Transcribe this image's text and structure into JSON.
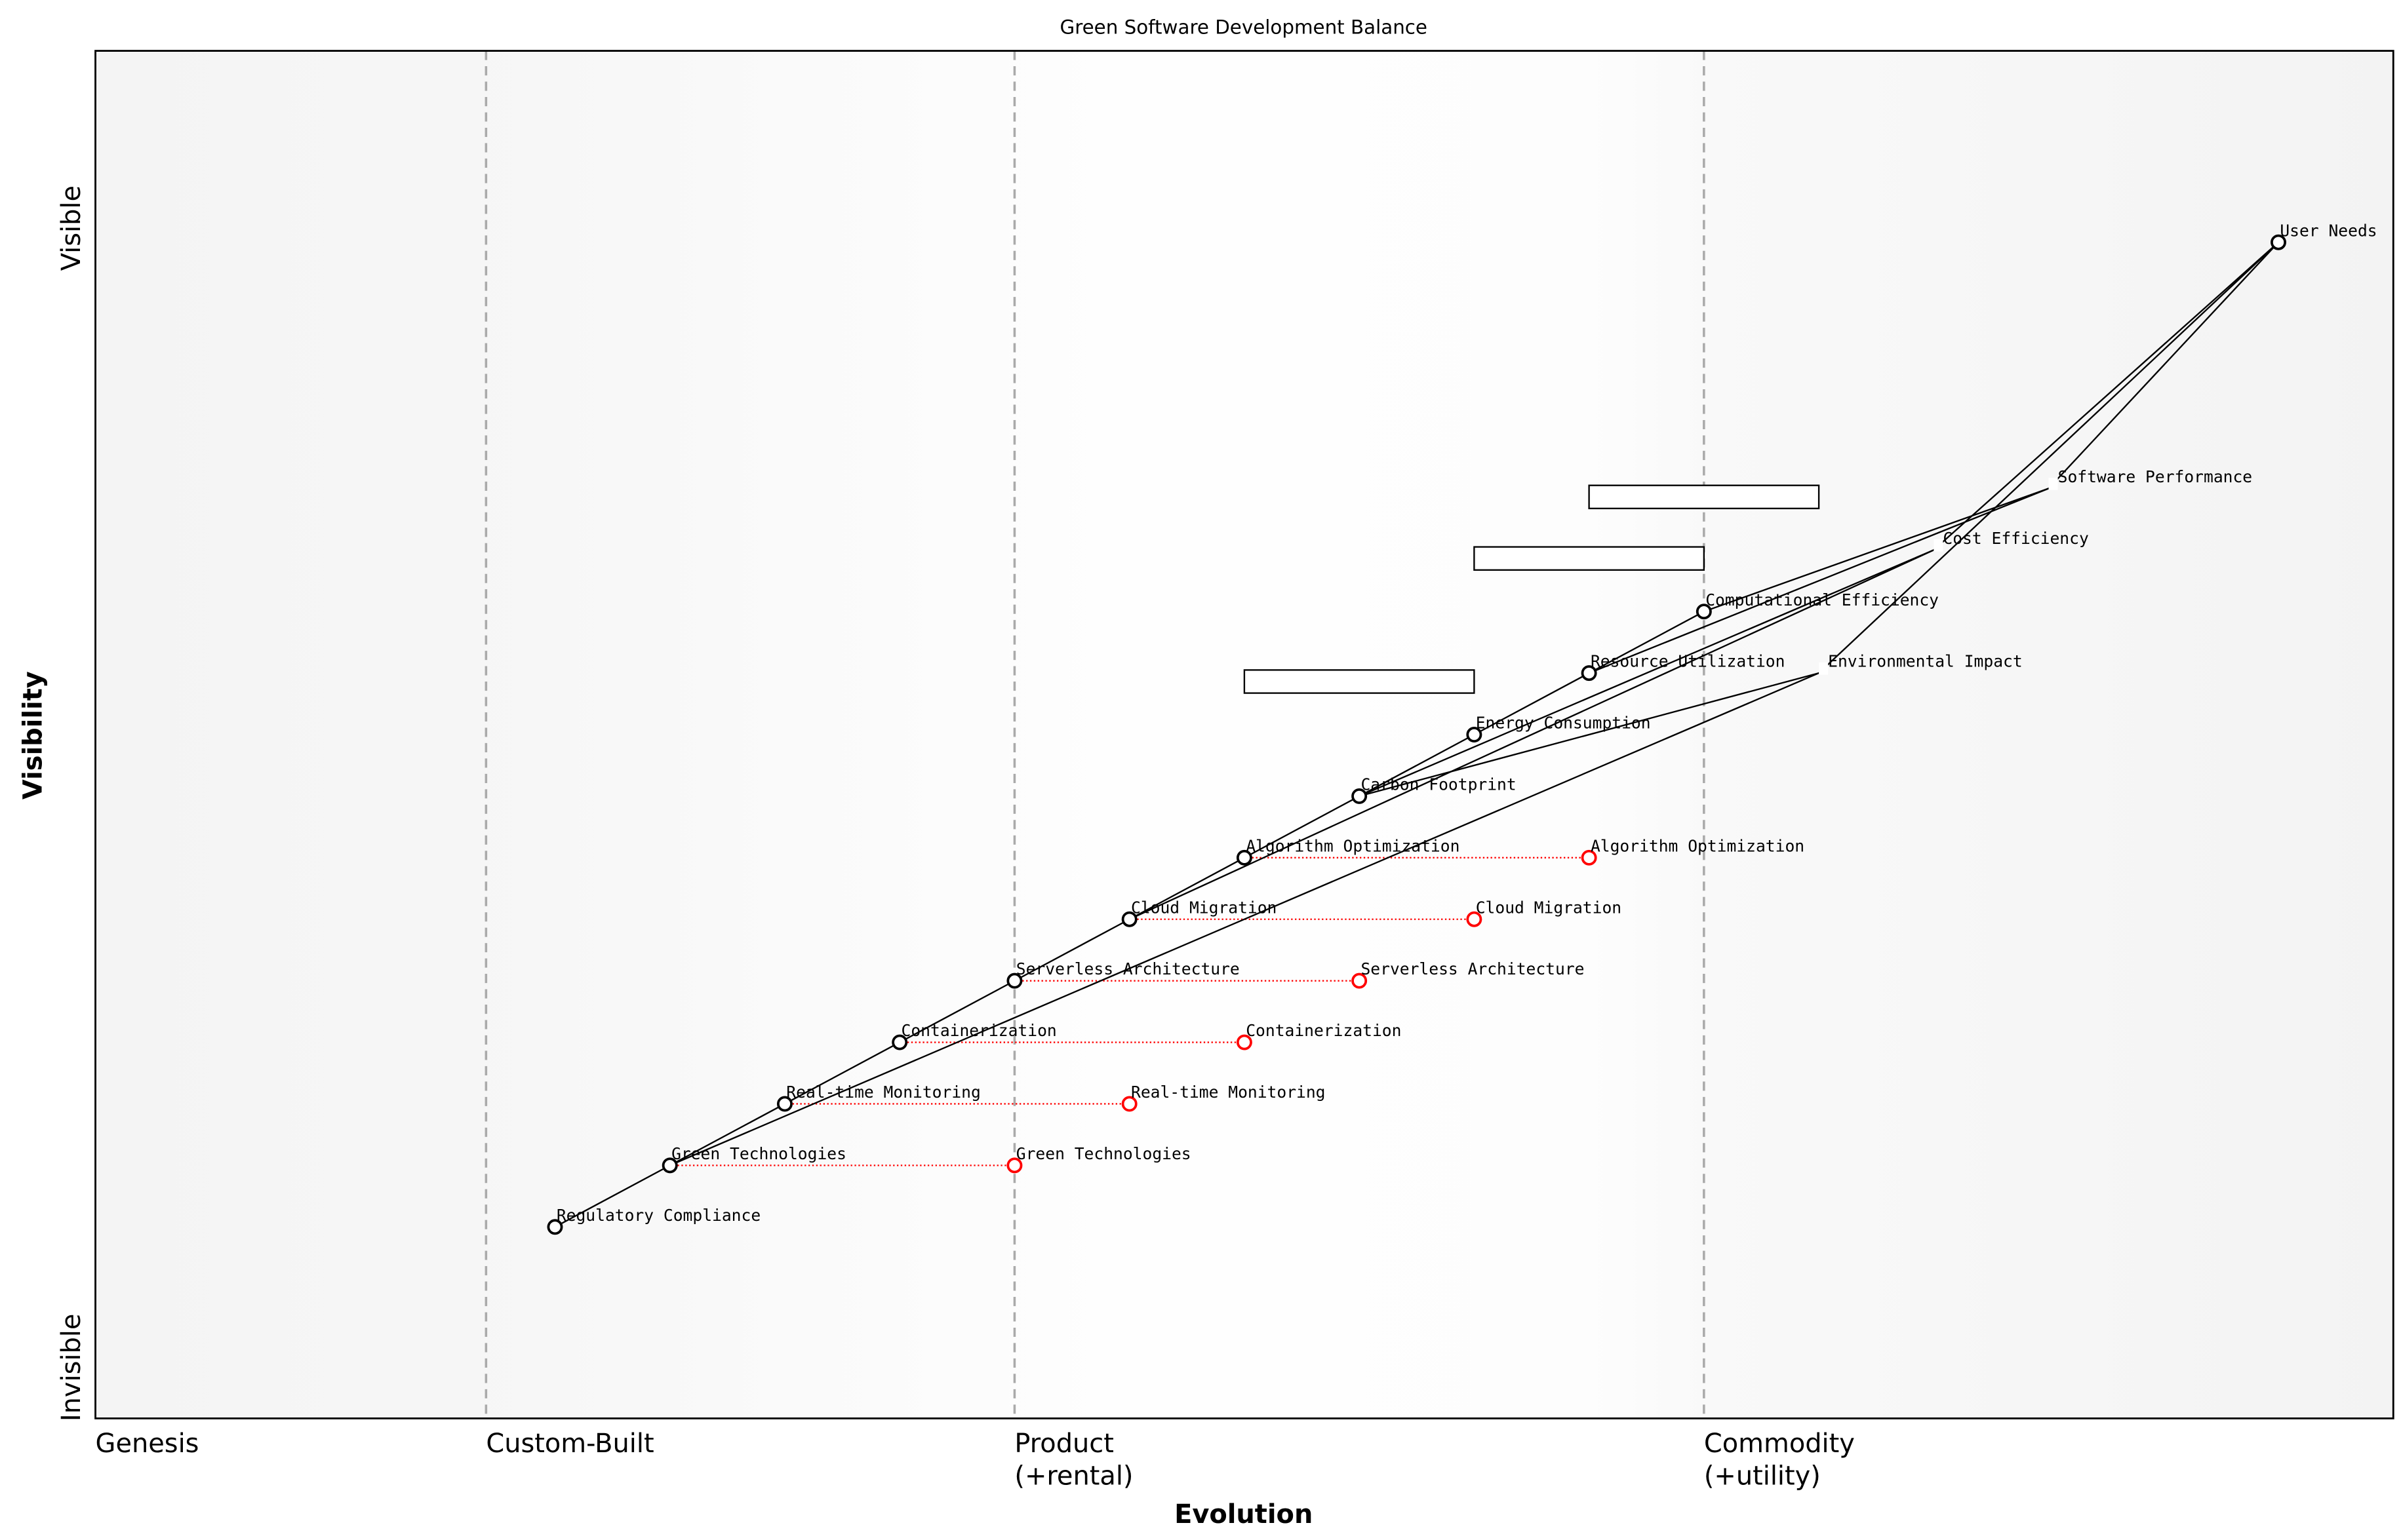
{
  "chart_data": {
    "type": "scatter",
    "title": "Green Software Development Balance",
    "xlabel": "Evolution",
    "ylabel": "Visibility",
    "xlim": [
      0,
      1
    ],
    "ylim": [
      0,
      1
    ],
    "y_tick_labels": {
      "top": "Visible",
      "bottom": "Invisible"
    },
    "stages": [
      {
        "label": "Genesis",
        "start": 0.0
      },
      {
        "label": "Custom-Built",
        "start": 0.17
      },
      {
        "label": "Product",
        "sub": "(+rental)",
        "start": 0.4
      },
      {
        "label": "Commodity",
        "sub": "(+utility)",
        "start": 0.7
      }
    ],
    "components": [
      {
        "name": "User Needs",
        "x": 0.95,
        "y": 0.86,
        "marker": "circle"
      },
      {
        "name": "Software Performance",
        "x": 0.85,
        "y": 0.68,
        "marker": "none"
      },
      {
        "name": "Cost Efficiency",
        "x": 0.8,
        "y": 0.635,
        "marker": "none"
      },
      {
        "name": "Environmental Impact",
        "x": 0.75,
        "y": 0.545,
        "marker": "none"
      },
      {
        "name": "Computational Efficiency",
        "x": 0.7,
        "y": 0.59,
        "marker": "circle"
      },
      {
        "name": "Resource Utilization",
        "x": 0.65,
        "y": 0.545,
        "marker": "circle"
      },
      {
        "name": "Energy Consumption",
        "x": 0.6,
        "y": 0.5,
        "marker": "circle"
      },
      {
        "name": "Carbon Footprint",
        "x": 0.55,
        "y": 0.455,
        "marker": "circle"
      },
      {
        "name": "Algorithm Optimization",
        "x": 0.5,
        "y": 0.41,
        "marker": "circle"
      },
      {
        "name": "Cloud Migration",
        "x": 0.45,
        "y": 0.365,
        "marker": "circle"
      },
      {
        "name": "Serverless Architecture",
        "x": 0.4,
        "y": 0.32,
        "marker": "circle"
      },
      {
        "name": "Containerization",
        "x": 0.35,
        "y": 0.275,
        "marker": "circle"
      },
      {
        "name": "Real-time Monitoring",
        "x": 0.3,
        "y": 0.23,
        "marker": "circle"
      },
      {
        "name": "Green Technologies",
        "x": 0.25,
        "y": 0.185,
        "marker": "circle"
      },
      {
        "name": "Regulatory Compliance",
        "x": 0.2,
        "y": 0.14,
        "marker": "circle"
      }
    ],
    "links": [
      [
        "User Needs",
        "Software Performance"
      ],
      [
        "User Needs",
        "Cost Efficiency"
      ],
      [
        "User Needs",
        "Environmental Impact"
      ],
      [
        "Software Performance",
        "Computational Efficiency"
      ],
      [
        "Software Performance",
        "Resource Utilization"
      ],
      [
        "Cost Efficiency",
        "Carbon Footprint"
      ],
      [
        "Cost Efficiency",
        "Cloud Migration"
      ],
      [
        "Environmental Impact",
        "Carbon Footprint"
      ],
      [
        "Environmental Impact",
        "Green Technologies"
      ],
      [
        "Computational Efficiency",
        "Resource Utilization"
      ],
      [
        "Resource Utilization",
        "Energy Consumption"
      ],
      [
        "Energy Consumption",
        "Carbon Footprint"
      ],
      [
        "Carbon Footprint",
        "Algorithm Optimization"
      ],
      [
        "Algorithm Optimization",
        "Cloud Migration"
      ],
      [
        "Cloud Migration",
        "Serverless Architecture"
      ],
      [
        "Serverless Architecture",
        "Containerization"
      ],
      [
        "Containerization",
        "Real-time Monitoring"
      ],
      [
        "Real-time Monitoring",
        "Green Technologies"
      ],
      [
        "Green Technologies",
        "Regulatory Compliance"
      ]
    ],
    "evolutions": [
      {
        "name": "Algorithm Optimization",
        "to_x": 0.65
      },
      {
        "name": "Cloud Migration",
        "to_x": 0.6
      },
      {
        "name": "Serverless Architecture",
        "to_x": 0.55
      },
      {
        "name": "Containerization",
        "to_x": 0.5
      },
      {
        "name": "Real-time Monitoring",
        "to_x": 0.45
      },
      {
        "name": "Green Technologies",
        "to_x": 0.4
      }
    ],
    "pipelines": [
      {
        "y": 0.68,
        "x_start": 0.65,
        "x_end": 0.75
      },
      {
        "y": 0.635,
        "x_start": 0.6,
        "x_end": 0.7
      },
      {
        "y": 0.545,
        "x_start": 0.5,
        "x_end": 0.6
      }
    ],
    "colors": {
      "component": "#000000",
      "evolution": "#ff0000",
      "stage_line": "#aaaaaa"
    }
  }
}
